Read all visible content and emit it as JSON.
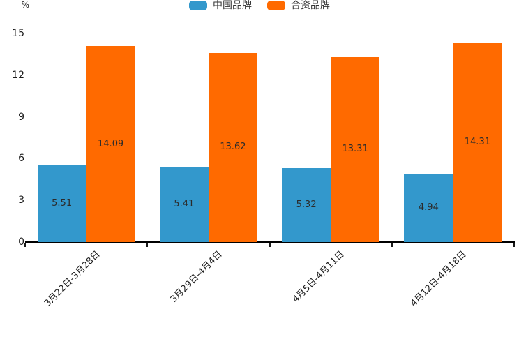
{
  "chart_data": {
    "type": "bar",
    "categories": [
      "3月22日-3月28日",
      "3月29日-4月4日",
      "4月5日-4月11日",
      "4月12日-4月18日"
    ],
    "series": [
      {
        "name": "中国品牌",
        "color": "#3398CC",
        "values": [
          5.51,
          5.41,
          5.32,
          4.94
        ]
      },
      {
        "name": "合资品牌",
        "color": "#FF6A00",
        "values": [
          14.09,
          13.62,
          13.31,
          14.31
        ]
      }
    ],
    "title": "",
    "xlabel": "",
    "ylabel": "%",
    "ylim": [
      0,
      15
    ],
    "yticks": [
      0,
      3,
      6,
      9,
      12,
      15
    ],
    "legend_position": "top",
    "grid": false,
    "value_labels_inside_bars": true,
    "x_label_rotation_deg": 45
  },
  "colors": {
    "background": "#ffffff",
    "axis_line": "#000000",
    "axis_text": "#1a1a1a",
    "value_label_text": "#2b2b2b",
    "series_blue": "#3398CC",
    "series_orange": "#FF6A00"
  }
}
